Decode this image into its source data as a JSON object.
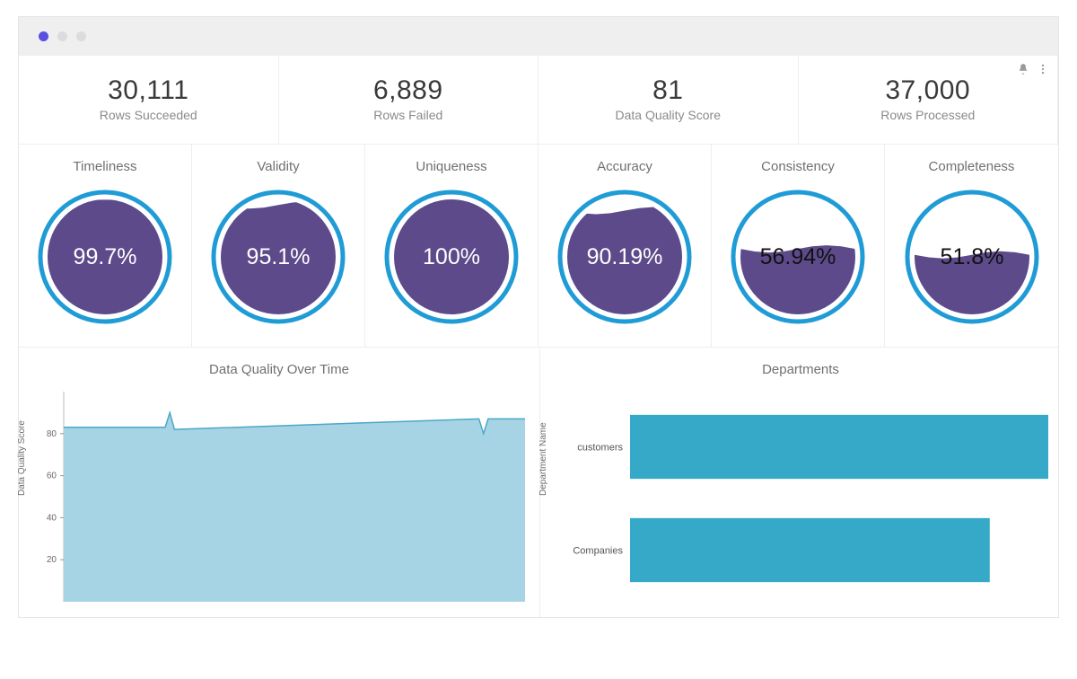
{
  "colors": {
    "window_chrome": "#efeff0",
    "active_dot": "#5b4fe0",
    "dim_dot": "#dcdcde",
    "border": "#eeeeee",
    "text_dark": "#3a3a3a",
    "text_muted": "#8a8a8a",
    "gauge_ring": "#1f9bd6",
    "gauge_fill": "#5d4a8a",
    "gauge_empty": "#ffffff",
    "area_fill": "#a7d4e4",
    "area_stroke": "#4aa8c8",
    "bar_fill": "#35a9c7"
  },
  "kpis": [
    {
      "value": "30,111",
      "label": "Rows Succeeded"
    },
    {
      "value": "6,889",
      "label": "Rows Failed"
    },
    {
      "value": "81",
      "label": "Data Quality Score"
    },
    {
      "value": "37,000",
      "label": "Rows Processed"
    }
  ],
  "gauges": [
    {
      "title": "Timeliness",
      "pct": 99.7,
      "display": "99.7%",
      "text_color": "#ffffff"
    },
    {
      "title": "Validity",
      "pct": 95.1,
      "display": "95.1%",
      "text_color": "#ffffff"
    },
    {
      "title": "Uniqueness",
      "pct": 100,
      "display": "100%",
      "text_color": "#ffffff"
    },
    {
      "title": "Accuracy",
      "pct": 90.19,
      "display": "90.19%",
      "text_color": "#ffffff"
    },
    {
      "title": "Consistency",
      "pct": 56.94,
      "display": "56.94%",
      "text_color": "#111111"
    },
    {
      "title": "Completeness",
      "pct": 51.8,
      "display": "51.8%",
      "text_color": "#111111"
    }
  ],
  "line_chart": {
    "title": "Data Quality Over Time",
    "ylabel": "Data Quality Score",
    "ylim": [
      0,
      100
    ],
    "yticks": [
      20,
      40,
      60,
      80
    ],
    "points": [
      [
        0,
        83
      ],
      [
        22,
        83
      ],
      [
        23,
        90
      ],
      [
        24,
        82
      ],
      [
        90,
        87
      ],
      [
        91,
        80
      ],
      [
        92,
        87
      ],
      [
        100,
        87
      ]
    ],
    "area_fill": "#a7d4e4",
    "area_stroke": "#4aa8c8",
    "grid_color": "#bfbfbf"
  },
  "bar_chart": {
    "title": "Departments",
    "ylabel": "Department Name",
    "xmax": 100,
    "categories": [
      "customers",
      "Companies"
    ],
    "values": [
      100,
      86
    ],
    "bar_fill": "#35a9c7"
  }
}
